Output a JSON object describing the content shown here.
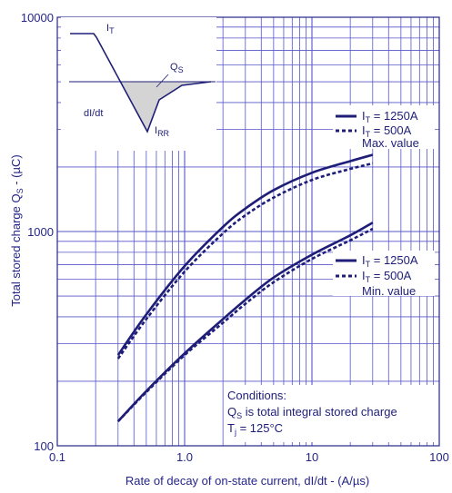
{
  "chart_data": {
    "type": "line",
    "x_scale": "log",
    "y_scale": "log",
    "xlim": [
      0.1,
      100
    ],
    "ylim": [
      100,
      10000
    ],
    "x_ticks": [
      "0.1",
      "1.0",
      "10",
      "100"
    ],
    "y_ticks": [
      "100",
      "1000",
      "10000"
    ],
    "xlabel": "Rate of decay of on-state current, dI/dt - (A/µs)",
    "ylabel": "Total stored charge Q",
    "ylabel_sub": "S",
    "ylabel_tail": " - (µC)",
    "grid": true,
    "series": [
      {
        "name": "IT = 1250A",
        "group": "Max. value",
        "style": "solid",
        "x": [
          0.3,
          0.5,
          1,
          2,
          3,
          5,
          10,
          20,
          30
        ],
        "y": [
          265,
          410,
          690,
          1050,
          1280,
          1560,
          1880,
          2130,
          2280
        ]
      },
      {
        "name": "IT = 500A",
        "group": "Max. value",
        "style": "dashed",
        "x": [
          0.3,
          0.5,
          1,
          2,
          3,
          5,
          10,
          20,
          30
        ],
        "y": [
          255,
          390,
          650,
          980,
          1190,
          1440,
          1740,
          1960,
          2080
        ]
      },
      {
        "name": "IT = 1250A",
        "group": "Min. value",
        "style": "solid",
        "x": [
          0.3,
          0.5,
          1,
          2,
          3,
          5,
          10,
          20,
          30
        ],
        "y": [
          130,
          180,
          270,
          390,
          480,
          610,
          780,
          960,
          1100
        ]
      },
      {
        "name": "IT = 500A",
        "group": "Min. value",
        "style": "dashed",
        "x": [
          0.3,
          0.5,
          1,
          2,
          3,
          5,
          10,
          20,
          30
        ],
        "y": [
          130,
          178,
          265,
          375,
          460,
          580,
          745,
          910,
          1030
        ]
      }
    ],
    "legend_max": {
      "e1": "I",
      "e1sub": "T",
      "e1tail": " = 1250A",
      "e2": "I",
      "e2sub": "T",
      "e2tail": " = 500A",
      "caption": "Max. value"
    },
    "legend_min": {
      "e1": "I",
      "e1sub": "T",
      "e1tail": " = 1250A",
      "e2": "I",
      "e2sub": "T",
      "e2tail": " = 500A",
      "caption": "Min. value"
    },
    "conditions": {
      "title": "Conditions:",
      "line1": "Q",
      "line1sub": "S",
      "line1tail": " is total integral stored charge",
      "line2": "T",
      "line2sub": "j",
      "line2tail": " = 125°C"
    },
    "inset": {
      "it": "I",
      "it_sub": "T",
      "qs": "Q",
      "qs_sub": "S",
      "didt": "dI/dt",
      "irr": "I",
      "irr_sub": "RR"
    },
    "colors": {
      "line": "#1e1e78",
      "grid": "#5757c9",
      "axis": "#25258a",
      "shade": "#d4d4d4"
    }
  }
}
